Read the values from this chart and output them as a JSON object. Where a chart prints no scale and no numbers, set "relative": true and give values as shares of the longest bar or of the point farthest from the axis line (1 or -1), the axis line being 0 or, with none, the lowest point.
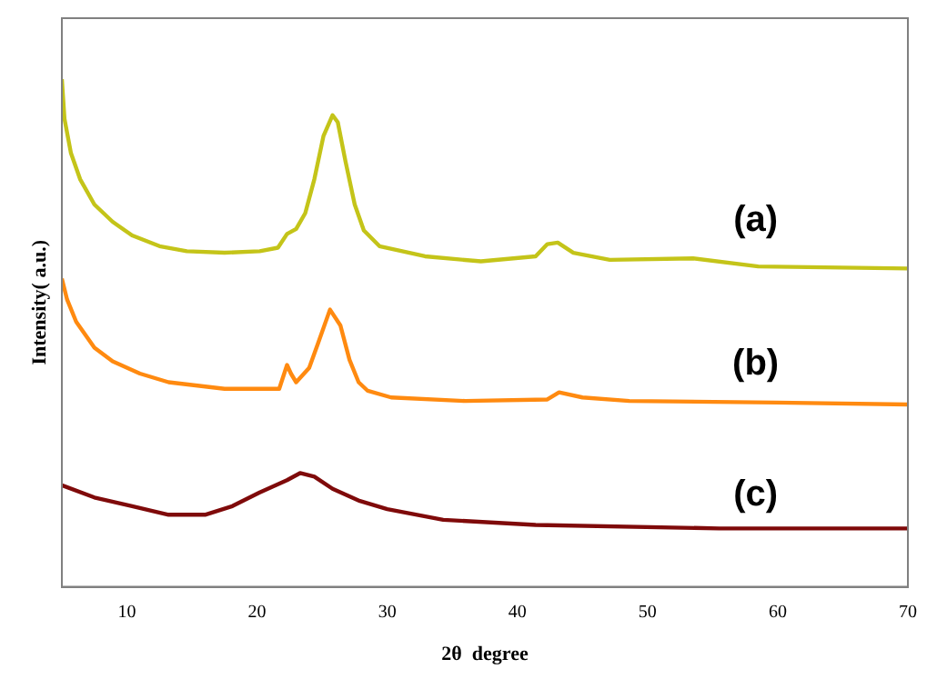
{
  "chart_data": {
    "type": "line",
    "xlabel": "2θ  degree",
    "ylabel": "Intensity( a.u.)",
    "relative": true,
    "xlim": [
      5,
      70
    ],
    "xticks": [
      10,
      20,
      30,
      40,
      50,
      60,
      70
    ],
    "grid": false,
    "legend": false,
    "marker": "none",
    "line_style": "solid",
    "series": [
      {
        "name": "(a)",
        "color": "#c4c419",
        "x": [
          5,
          5.2,
          5.7,
          6.4,
          7.5,
          8.9,
          10.4,
          12.5,
          14.6,
          17.5,
          20.2,
          21.6,
          22.3,
          23,
          23.7,
          24.4,
          25.1,
          25.8,
          26.2,
          26.8,
          27.5,
          28.2,
          29.4,
          32.9,
          37.2,
          41.4,
          42.3,
          43.1,
          44.3,
          47.1,
          53.5,
          58.5,
          70
        ],
        "values": [
          1.0,
          0.922,
          0.854,
          0.803,
          0.753,
          0.719,
          0.692,
          0.671,
          0.661,
          0.658,
          0.661,
          0.668,
          0.695,
          0.705,
          0.736,
          0.803,
          0.888,
          0.929,
          0.915,
          0.837,
          0.753,
          0.702,
          0.671,
          0.651,
          0.641,
          0.651,
          0.675,
          0.678,
          0.658,
          0.644,
          0.647,
          0.631,
          0.627
        ]
      },
      {
        "name": "(b)",
        "color": "#ff8a10",
        "x": [
          5,
          5.4,
          6.1,
          7.5,
          8.9,
          11,
          13.2,
          17.5,
          21.7,
          22.3,
          22.6,
          23,
          24,
          24.7,
          25.6,
          26.4,
          27.1,
          27.8,
          28.5,
          30.3,
          36,
          42.3,
          43.2,
          45,
          48.6,
          59.9,
          70
        ],
        "values": [
          0.607,
          0.566,
          0.522,
          0.471,
          0.444,
          0.42,
          0.403,
          0.39,
          0.39,
          0.437,
          0.42,
          0.403,
          0.431,
          0.481,
          0.546,
          0.515,
          0.447,
          0.403,
          0.386,
          0.373,
          0.366,
          0.369,
          0.383,
          0.373,
          0.366,
          0.363,
          0.359
        ]
      },
      {
        "name": "(c)",
        "color": "#7f0a0a",
        "x": [
          5,
          7.5,
          10.4,
          13.2,
          16,
          18.1,
          20.2,
          22.3,
          23.3,
          24.4,
          25.8,
          27.9,
          30,
          34.3,
          41.4,
          55.5,
          70
        ],
        "values": [
          0.2,
          0.176,
          0.159,
          0.142,
          0.142,
          0.159,
          0.186,
          0.21,
          0.224,
          0.217,
          0.193,
          0.169,
          0.153,
          0.132,
          0.122,
          0.115,
          0.115
        ]
      }
    ]
  }
}
